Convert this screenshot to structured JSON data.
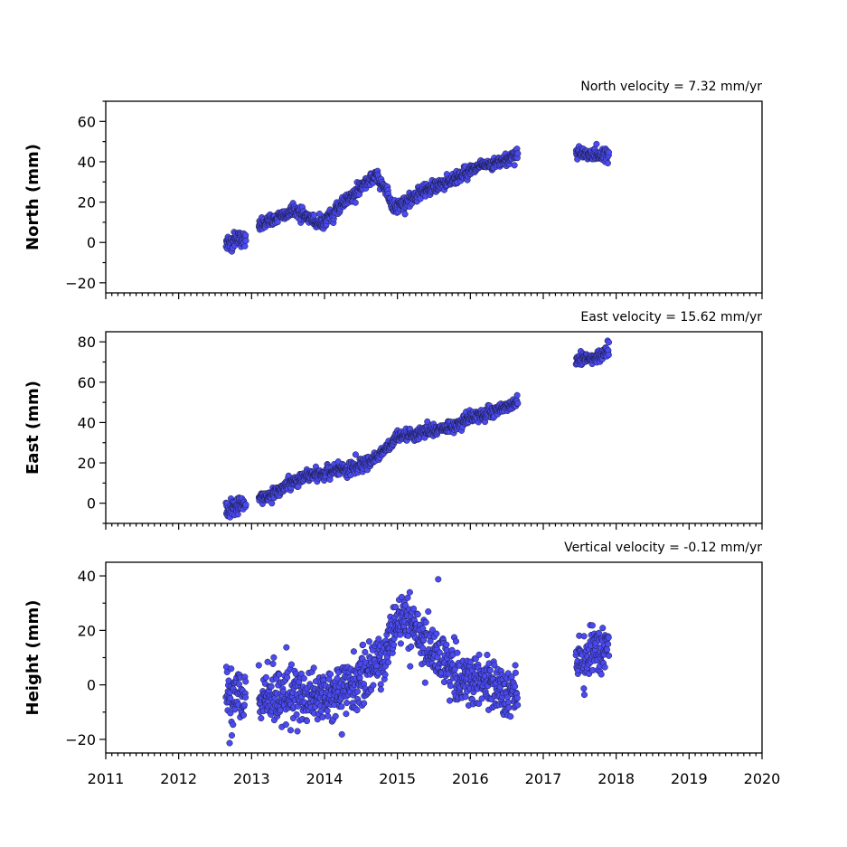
{
  "chart_data": [
    {
      "type": "scatter",
      "title": "North velocity = 7.32 mm/yr",
      "ylabel": "North (mm)",
      "ylim": [
        -25,
        70
      ],
      "yticks": [
        -20,
        0,
        20,
        40,
        60
      ],
      "xlim": [
        2011,
        2020
      ],
      "marker_color": "#4a4af0",
      "segments": [
        {
          "x": [
            2012.65,
            2012.75,
            2012.85,
            2012.92
          ],
          "y": [
            0,
            1,
            2,
            1
          ],
          "noise": 2.0
        },
        {
          "x": [
            2013.1,
            2013.4,
            2013.6,
            2013.8,
            2013.95,
            2014.1,
            2014.3,
            2014.5,
            2014.7,
            2014.85,
            2014.95,
            2015.1,
            2015.4,
            2015.7,
            2015.9,
            2016.1,
            2016.3,
            2016.5,
            2016.65
          ],
          "y": [
            8,
            13,
            16,
            12,
            9,
            14,
            21,
            27,
            33,
            26,
            17,
            20,
            26,
            30,
            34,
            37,
            39,
            41,
            44
          ],
          "noise": 1.5
        },
        {
          "x": [
            2017.45,
            2017.6,
            2017.75,
            2017.9
          ],
          "y": [
            44,
            44,
            43,
            43
          ],
          "noise": 1.6
        }
      ]
    },
    {
      "type": "scatter",
      "title": "East velocity = 15.62 mm/yr",
      "ylabel": "East (mm)",
      "ylim": [
        -10,
        85
      ],
      "yticks": [
        0,
        20,
        40,
        60,
        80
      ],
      "xlim": [
        2011,
        2020
      ],
      "marker_color": "#4a4af0",
      "segments": [
        {
          "x": [
            2012.65,
            2012.78,
            2012.92
          ],
          "y": [
            -4,
            -2,
            -1
          ],
          "noise": 2.2
        },
        {
          "x": [
            2013.1,
            2013.4,
            2013.7,
            2014.0,
            2014.3,
            2014.6,
            2014.8,
            2015.0,
            2015.3,
            2015.6,
            2015.8,
            2016.0,
            2016.3,
            2016.5,
            2016.65
          ],
          "y": [
            2,
            7,
            13,
            15,
            17,
            20,
            26,
            32,
            35,
            37,
            38,
            43,
            45,
            48,
            51
          ],
          "noise": 1.5
        },
        {
          "x": [
            2017.45,
            2017.65,
            2017.8,
            2017.9
          ],
          "y": [
            71,
            72,
            73,
            77
          ],
          "noise": 1.6
        }
      ]
    },
    {
      "type": "scatter",
      "title": "Vertical velocity = -0.12 mm/yr",
      "ylabel": "Height (mm)",
      "ylim": [
        -25,
        45
      ],
      "yticks": [
        -20,
        0,
        20,
        40
      ],
      "xlim": [
        2011,
        2020
      ],
      "xticks": [
        2011,
        2012,
        2013,
        2014,
        2015,
        2016,
        2017,
        2018,
        2019,
        2020
      ],
      "marker_color": "#4a4af0",
      "segments": [
        {
          "x": [
            2012.65,
            2012.78,
            2012.92
          ],
          "y": [
            -5,
            -4,
            -3
          ],
          "noise": 6.0
        },
        {
          "x": [
            2013.1,
            2013.5,
            2013.9,
            2014.2,
            2014.5,
            2014.8,
            2015.0,
            2015.2,
            2015.5,
            2015.8,
            2016.0,
            2016.3,
            2016.65
          ],
          "y": [
            -5,
            -4,
            -4,
            -3,
            2,
            10,
            24,
            22,
            12,
            4,
            0,
            0,
            -2
          ],
          "noise": 5.0
        },
        {
          "x": [
            2017.45,
            2017.65,
            2017.9
          ],
          "y": [
            8,
            12,
            16
          ],
          "noise": 5.0
        }
      ]
    }
  ]
}
